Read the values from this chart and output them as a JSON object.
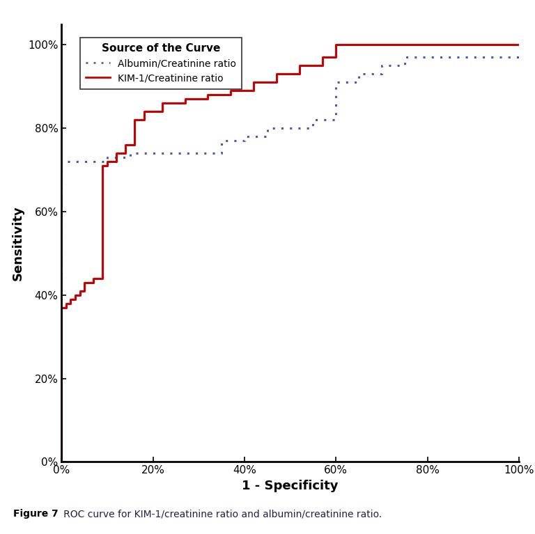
{
  "title": "Source of the Curve",
  "xlabel": "1 - Specificity",
  "ylabel": "Sensitivity",
  "xlim": [
    0,
    1
  ],
  "ylim": [
    0,
    1.05
  ],
  "xticks": [
    0,
    0.2,
    0.4,
    0.6,
    0.8,
    1.0
  ],
  "yticks": [
    0,
    0.2,
    0.4,
    0.6,
    0.8,
    1.0
  ],
  "xticklabels": [
    "0%",
    "20%",
    "40%",
    "60%",
    "80%",
    "100%"
  ],
  "yticklabels": [
    "0%",
    "20%",
    "40%",
    "60%",
    "80%",
    "100%"
  ],
  "legend_title": "Source of the Curve",
  "albumin_label": "Albumin/Creatinine ratio",
  "kim_label": "KIM-1/Creatinine ratio",
  "albumin_color": "#5555aa",
  "kim_color": "#cc0000",
  "figure_caption_bold": "Figure 7",
  "figure_caption_rest": "   ROC curve for KIM-1/creatinine ratio and albumin/creatinine ratio.",
  "albumin_fpr": [
    0.0,
    0.0,
    0.02,
    0.02,
    0.05,
    0.05,
    0.1,
    0.1,
    0.15,
    0.15,
    0.2,
    0.2,
    0.25,
    0.25,
    0.35,
    0.35,
    0.4,
    0.4,
    0.45,
    0.45,
    0.55,
    0.55,
    0.6,
    0.6,
    0.65,
    0.65,
    0.7,
    0.7,
    0.75,
    0.75,
    0.85,
    0.85,
    0.9,
    0.9,
    0.95,
    0.95,
    1.0
  ],
  "albumin_tpr": [
    0.0,
    0.72,
    0.72,
    0.72,
    0.72,
    0.72,
    0.72,
    0.73,
    0.73,
    0.74,
    0.74,
    0.74,
    0.74,
    0.74,
    0.74,
    0.77,
    0.77,
    0.78,
    0.78,
    0.8,
    0.8,
    0.82,
    0.82,
    0.91,
    0.91,
    0.93,
    0.93,
    0.95,
    0.95,
    0.97,
    0.97,
    0.97,
    0.97,
    0.97,
    0.97,
    0.97,
    0.97
  ],
  "kim_fpr": [
    0.0,
    0.0,
    0.0,
    0.01,
    0.01,
    0.02,
    0.02,
    0.03,
    0.03,
    0.04,
    0.04,
    0.05,
    0.05,
    0.07,
    0.07,
    0.09,
    0.09,
    0.1,
    0.1,
    0.12,
    0.12,
    0.14,
    0.14,
    0.16,
    0.16,
    0.18,
    0.18,
    0.22,
    0.22,
    0.27,
    0.27,
    0.32,
    0.32,
    0.37,
    0.37,
    0.42,
    0.42,
    0.47,
    0.47,
    0.52,
    0.52,
    0.57,
    0.57,
    0.6,
    0.6,
    0.65,
    0.65,
    0.7,
    0.7,
    0.8,
    0.8,
    0.9,
    0.9,
    1.0
  ],
  "kim_tpr": [
    0.0,
    0.0,
    0.37,
    0.37,
    0.38,
    0.38,
    0.39,
    0.39,
    0.4,
    0.4,
    0.41,
    0.41,
    0.43,
    0.43,
    0.44,
    0.44,
    0.71,
    0.71,
    0.72,
    0.72,
    0.74,
    0.74,
    0.76,
    0.76,
    0.82,
    0.82,
    0.84,
    0.84,
    0.86,
    0.86,
    0.87,
    0.87,
    0.88,
    0.88,
    0.89,
    0.89,
    0.91,
    0.91,
    0.93,
    0.93,
    0.95,
    0.95,
    0.97,
    0.97,
    1.0,
    1.0,
    1.0,
    1.0,
    1.0,
    1.0,
    1.0,
    1.0,
    1.0,
    1.0
  ]
}
